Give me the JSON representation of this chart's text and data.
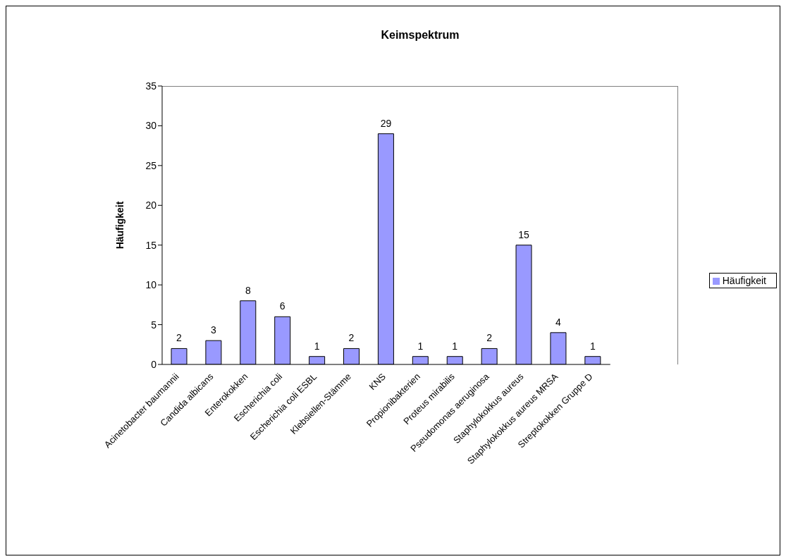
{
  "chart_data": {
    "type": "bar",
    "title": "Keimspektrum",
    "ylabel": "Häufigkeit",
    "categories": [
      "Acinetobacter baumannii",
      "Candida albicans",
      "Enterokokken",
      "Escherichia coli",
      "Escherichia coli ESBL",
      "Klebsiellen-Stämme",
      "KNS",
      "Propionibakterien",
      "Proteus mirabilis",
      "Pseudomonas aeruginosa",
      "Staphylokokkus aureus",
      "Staphylokokkus aureus MRSA",
      "Streptokokken Gruppe D"
    ],
    "series": [
      {
        "name": "Häufigkeit",
        "color": "#9999ff",
        "values": [
          2,
          3,
          8,
          6,
          1,
          2,
          29,
          1,
          1,
          2,
          15,
          4,
          1
        ]
      }
    ],
    "ylim": [
      0,
      35
    ],
    "yticks": [
      0,
      5,
      10,
      15,
      20,
      25,
      30,
      35
    ],
    "data_labels": true,
    "legend": "right"
  }
}
